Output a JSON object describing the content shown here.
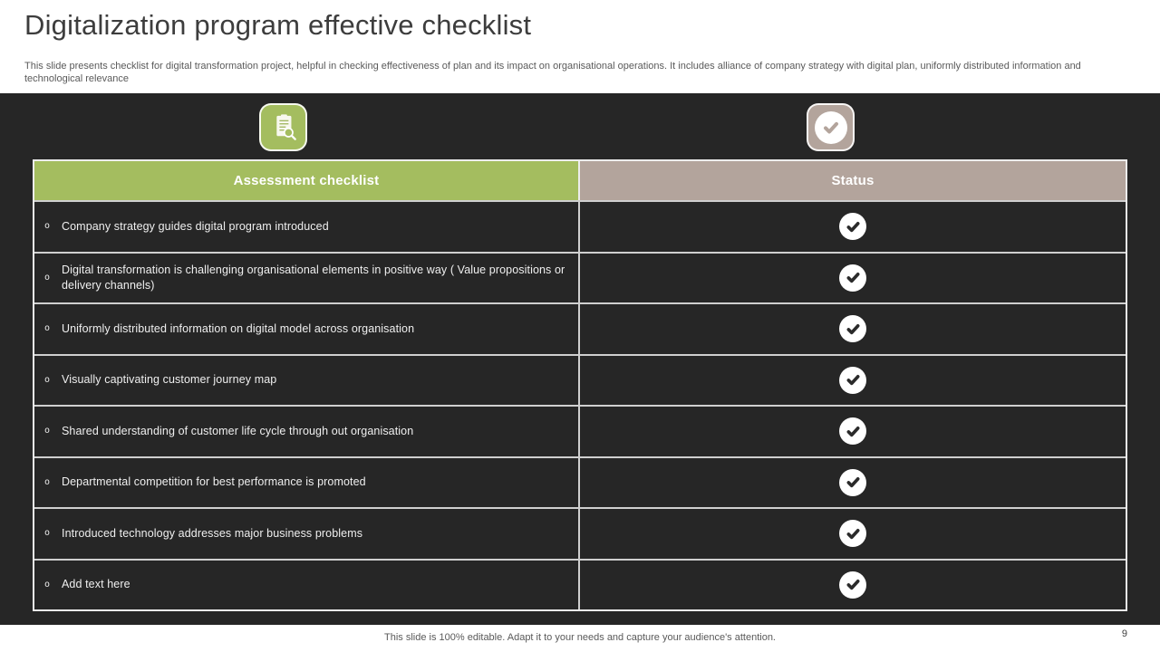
{
  "slide": {
    "title": "Digitalization program effective checklist",
    "subtitle": "This slide presents checklist for digital transformation project, helpful in checking effectiveness of plan and its impact on organisational operations. It includes alliance of company strategy with digital plan, uniformly distributed information and technological relevance",
    "footer_note": "This slide is 100% editable. Adapt it to your needs and capture your audience's attention.",
    "page_number": "9"
  },
  "icons": {
    "checklist_column_icon": "document-magnifier-icon",
    "status_column_icon": "checkmark-circle-icon"
  },
  "table": {
    "bullet_char": "o",
    "columns": [
      {
        "label": "Assessment checklist",
        "color": "#a4bd5f"
      },
      {
        "label": "Status",
        "color": "#b3a49c"
      }
    ],
    "rows": [
      {
        "text": "Company strategy guides digital program introduced",
        "status": "checked"
      },
      {
        "text": "Digital transformation is challenging organisational elements in positive way ( Value propositions or delivery channels)",
        "status": "checked"
      },
      {
        "text": "Uniformly distributed information on digital model across organisation",
        "status": "checked"
      },
      {
        "text": "Visually captivating customer journey map",
        "status": "checked"
      },
      {
        "text": "Shared understanding of customer life cycle through out organisation",
        "status": "checked"
      },
      {
        "text": "Departmental competition for best performance is promoted",
        "status": "checked"
      },
      {
        "text": "Introduced technology addresses major business problems",
        "status": "checked"
      },
      {
        "text": "Add text here",
        "status": "checked"
      }
    ]
  },
  "colors": {
    "accent_green": "#a4bd5f",
    "accent_taupe": "#b3a49c",
    "dark_background": "#262626",
    "row_text": "#efefef",
    "check_mark": "#2a2a2a"
  }
}
